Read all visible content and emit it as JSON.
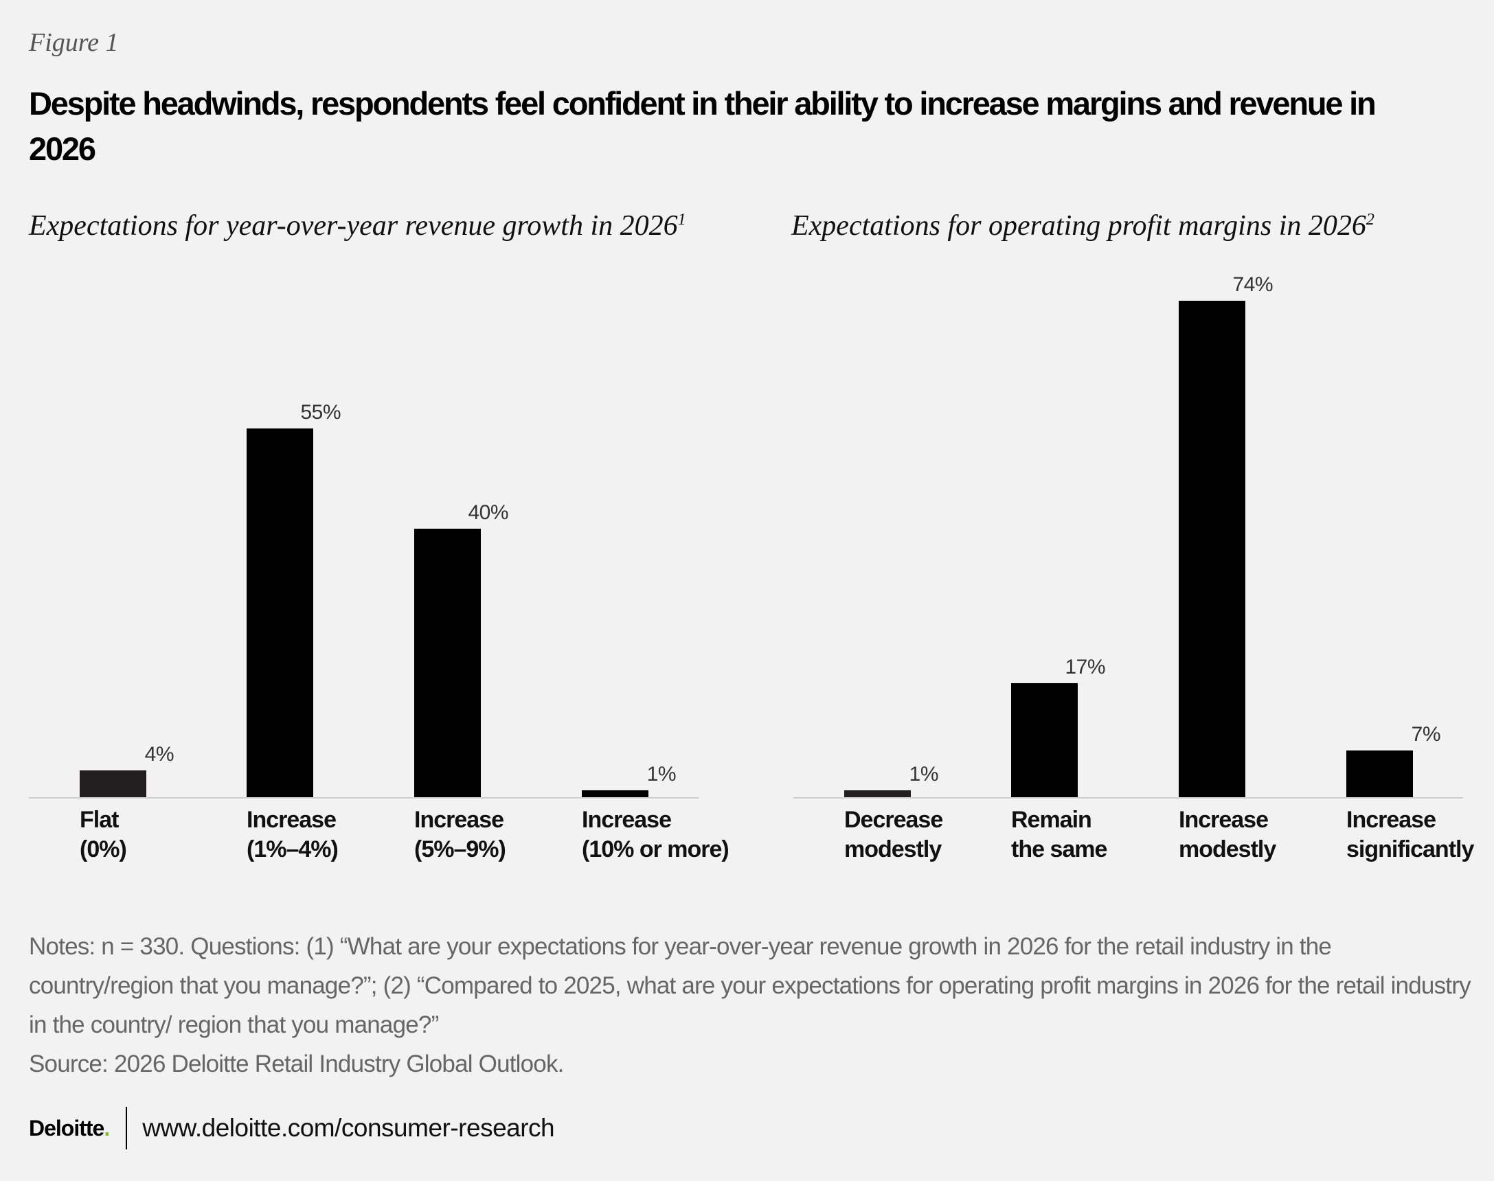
{
  "figure_label": "Figure 1",
  "title": "Despite headwinds, respondents feel confident in their ability to increase margins and revenue in 2026",
  "chart_data": [
    {
      "type": "bar",
      "title": "Expectations for year-over-year revenue growth in 2026",
      "title_footnote": "1",
      "categories": [
        "Flat\n(0%)",
        "Increase\n(1%–4%)",
        "Increase\n(5%–9%)",
        "Increase\n(10% or more)"
      ],
      "values": [
        4,
        55,
        40,
        1
      ],
      "value_labels": [
        "4%",
        "55%",
        "40%",
        "1%"
      ],
      "unit": "%",
      "ylim": [
        0,
        80
      ],
      "grid": false,
      "colors": [
        "#231f20",
        "#000000",
        "#000000",
        "#000000"
      ]
    },
    {
      "type": "bar",
      "title": "Expectations for operating profit margins in 2026",
      "title_footnote": "2",
      "categories": [
        "Decrease\nmodestly",
        "Remain\nthe same",
        "Increase\nmodestly",
        "Increase\nsignificantly"
      ],
      "values": [
        1,
        17,
        74,
        7
      ],
      "value_labels": [
        "1%",
        "17%",
        "74%",
        "7%"
      ],
      "unit": "%",
      "ylim": [
        0,
        80
      ],
      "grid": false,
      "colors": [
        "#231f20",
        "#000000",
        "#000000",
        "#000000"
      ]
    }
  ],
  "notes": "Notes: n = 330. Questions: (1) “What are your expectations for year-over-year revenue growth in 2026 for the retail industry in the country/region that you manage?”; (2) “Compared to 2025, what are your expectations for operating profit margins in 2026 for the retail industry in the country/ region that you manage?”",
  "source": "Source: 2026 Deloitte Retail Industry Global Outlook.",
  "footer": {
    "logo": "Deloitte",
    "logo_dot": ".",
    "url": "www.deloitte.com/consumer-research",
    "accent_color": "#86bc25"
  }
}
